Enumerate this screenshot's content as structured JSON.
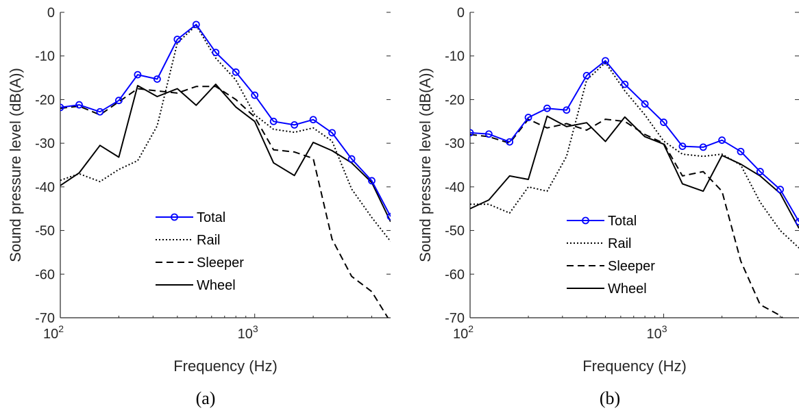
{
  "chart_data": [
    {
      "type": "line",
      "panel_label": "(a)",
      "xlabel": "Frequency (Hz)",
      "ylabel": "Sound pressure level (dB(A))",
      "xscale": "log",
      "xlim": [
        100,
        5000
      ],
      "ylim": [
        -70,
        0
      ],
      "yticks": [
        0,
        -10,
        -20,
        -30,
        -40,
        -50,
        -60,
        -70
      ],
      "xtick_labels": [
        {
          "base": "10",
          "exp": "2",
          "value": 100
        },
        {
          "base": "10",
          "exp": "3",
          "value": 1000
        }
      ],
      "legend_position": "lower-center",
      "grid": false,
      "x": [
        100,
        125,
        160,
        200,
        250,
        315,
        400,
        500,
        630,
        800,
        1000,
        1250,
        1600,
        2000,
        2500,
        3150,
        4000,
        5000
      ],
      "series": [
        {
          "name": "Total",
          "color": "#0000ff",
          "style": "solid-marker",
          "values": [
            -21.8,
            -21.2,
            -22.8,
            -20.2,
            -14.3,
            -15.3,
            -6.2,
            -2.8,
            -9.2,
            -13.7,
            -19.0,
            -25.0,
            -25.8,
            -24.6,
            -27.6,
            -33.6,
            -38.6,
            -46.8
          ]
        },
        {
          "name": "Rail",
          "color": "#000000",
          "style": "dotted",
          "values": [
            -38.5,
            -37.0,
            -38.8,
            -36.0,
            -34.0,
            -26.0,
            -7.0,
            -3.0,
            -10.5,
            -15.5,
            -23.5,
            -26.8,
            -27.5,
            -26.5,
            -29.5,
            -40.5,
            -47.0,
            -52.5
          ]
        },
        {
          "name": "Sleeper",
          "color": "#000000",
          "style": "dashed",
          "values": [
            -22.0,
            -21.5,
            -23.5,
            -20.5,
            -17.5,
            -18.0,
            -18.5,
            -17.0,
            -17.0,
            -20.0,
            -24.0,
            -31.5,
            -32.0,
            -33.5,
            -52.0,
            -60.5,
            -64.0,
            -71.0
          ]
        },
        {
          "name": "Wheel",
          "color": "#000000",
          "style": "solid",
          "values": [
            -39.7,
            -36.8,
            -30.5,
            -33.2,
            -16.8,
            -19.3,
            -17.5,
            -21.3,
            -16.5,
            -21.7,
            -25.0,
            -34.5,
            -37.4,
            -29.8,
            -31.7,
            -34.5,
            -39.0,
            -48.0
          ]
        }
      ]
    },
    {
      "type": "line",
      "panel_label": "(b)",
      "xlabel": "Frequency (Hz)",
      "ylabel": "Sound pressure level (dB(A))",
      "xscale": "log",
      "xlim": [
        100,
        5000
      ],
      "ylim": [
        -70,
        0
      ],
      "yticks": [
        0,
        -10,
        -20,
        -30,
        -40,
        -50,
        -60,
        -70
      ],
      "xtick_labels": [
        {
          "base": "10",
          "exp": "2",
          "value": 100
        },
        {
          "base": "10",
          "exp": "3",
          "value": 1000
        }
      ],
      "legend_position": "lower-center",
      "grid": false,
      "x": [
        100,
        125,
        160,
        200,
        250,
        315,
        400,
        500,
        630,
        800,
        1000,
        1250,
        1600,
        2000,
        2500,
        3150,
        4000,
        5000
      ],
      "series": [
        {
          "name": "Total",
          "color": "#0000ff",
          "style": "solid-marker",
          "values": [
            -27.6,
            -27.9,
            -29.7,
            -24.1,
            -22.0,
            -22.4,
            -14.5,
            -11.1,
            -16.5,
            -21.0,
            -25.2,
            -30.7,
            -30.9,
            -29.3,
            -31.9,
            -36.5,
            -40.6,
            -48.0
          ]
        },
        {
          "name": "Rail",
          "color": "#000000",
          "style": "dotted",
          "values": [
            -44.0,
            -44.0,
            -46.0,
            -40.0,
            -41.0,
            -33.0,
            -15.5,
            -11.5,
            -18.0,
            -23.5,
            -29.5,
            -32.5,
            -33.0,
            -32.5,
            -35.0,
            -43.5,
            -50.0,
            -54.0
          ]
        },
        {
          "name": "Sleeper",
          "color": "#000000",
          "style": "dashed",
          "values": [
            -28.0,
            -28.5,
            -30.0,
            -24.5,
            -26.5,
            -25.5,
            -27.0,
            -24.5,
            -25.0,
            -28.0,
            -30.0,
            -37.5,
            -36.5,
            -41.0,
            -57.0,
            -67.0,
            -69.5,
            -74.0
          ]
        },
        {
          "name": "Wheel",
          "color": "#000000",
          "style": "solid",
          "values": [
            -45.0,
            -43.0,
            -37.5,
            -38.3,
            -23.8,
            -26.2,
            -25.3,
            -29.6,
            -24.0,
            -28.5,
            -30.2,
            -39.3,
            -41.0,
            -32.8,
            -34.8,
            -37.5,
            -41.5,
            -49.5
          ]
        }
      ]
    }
  ]
}
